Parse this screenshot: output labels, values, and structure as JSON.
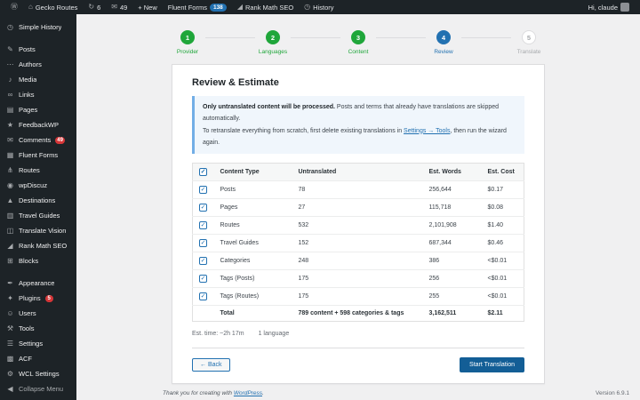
{
  "admin_bar": {
    "wp_logo_glyph": "Ⓦ",
    "home_glyph": "⌂",
    "site_name": "Gecko Routes",
    "updates_glyph": "↻",
    "updates_count": "6",
    "comments_glyph": "✉",
    "comments_count": "49",
    "new_label": "+ New",
    "fluent_forms_label": "Fluent Forms",
    "fluent_forms_badge": "138",
    "rank_math_glyph": "◢",
    "rank_math_label": "Rank Math SEO",
    "history_glyph": "◷",
    "history_label": "History",
    "greeting": "Hi, claude"
  },
  "sidebar": {
    "items": [
      {
        "label": "Simple History",
        "icon": "clock",
        "glyph": "◷"
      },
      {
        "separator": true
      },
      {
        "label": "Posts",
        "icon": "post",
        "glyph": "✎"
      },
      {
        "label": "Authors",
        "icon": "ellipsis",
        "glyph": "⋯"
      },
      {
        "label": "Media",
        "icon": "media",
        "glyph": "♪"
      },
      {
        "label": "Links",
        "icon": "link",
        "glyph": "∞"
      },
      {
        "label": "Pages",
        "icon": "pages",
        "glyph": "▤"
      },
      {
        "label": "FeedbackWP",
        "icon": "star",
        "glyph": "★"
      },
      {
        "label": "Comments",
        "icon": "comment-bubble",
        "glyph": "✉",
        "badge": "49"
      },
      {
        "label": "Fluent Forms",
        "icon": "form",
        "glyph": "▦"
      },
      {
        "label": "Routes",
        "icon": "sitemap",
        "glyph": "⋔"
      },
      {
        "label": "wpDiscuz",
        "icon": "discussion",
        "glyph": "◉"
      },
      {
        "label": "Destinations",
        "icon": "mountain",
        "glyph": "▲"
      },
      {
        "label": "Travel Guides",
        "icon": "book",
        "glyph": "▥"
      },
      {
        "label": "Translate Vision",
        "icon": "translate",
        "glyph": "◫"
      },
      {
        "label": "Rank Math SEO",
        "icon": "chart",
        "glyph": "◢"
      },
      {
        "label": "Blocks",
        "icon": "grid",
        "glyph": "⊞"
      },
      {
        "separator": true
      },
      {
        "label": "Appearance",
        "icon": "brush",
        "glyph": "✒"
      },
      {
        "label": "Plugins",
        "icon": "plugin",
        "glyph": "✦",
        "badge": "5"
      },
      {
        "label": "Users",
        "icon": "user",
        "glyph": "☺"
      },
      {
        "label": "Tools",
        "icon": "tools",
        "glyph": "⚒"
      },
      {
        "label": "Settings",
        "icon": "settings",
        "glyph": "☰"
      },
      {
        "label": "ACF",
        "icon": "acf",
        "glyph": "▩"
      },
      {
        "label": "WCL Settings",
        "icon": "gear",
        "glyph": "⚙"
      }
    ],
    "collapse": {
      "label": "Collapse Menu",
      "icon": "collapse-arrow",
      "glyph": "◀"
    }
  },
  "wizard": {
    "steps": [
      {
        "num": "1",
        "label": "Provider",
        "state": "done"
      },
      {
        "num": "2",
        "label": "Languages",
        "state": "done"
      },
      {
        "num": "3",
        "label": "Content",
        "state": "done"
      },
      {
        "num": "4",
        "label": "Review",
        "state": "active"
      },
      {
        "num": "5",
        "label": "Translate",
        "state": "todo"
      }
    ]
  },
  "card": {
    "title": "Review & Estimate",
    "notice": {
      "bold": "Only untranslated content will be processed.",
      "rest1": " Posts and terms that already have translations are skipped automatically.",
      "pre2": "To retranslate everything from scratch, first delete existing translations in ",
      "link": "Settings → Tools",
      "post2": ", then run the wizard again."
    },
    "table": {
      "check_glyph": "✓",
      "headers": [
        "Content Type",
        "Untranslated",
        "Est. Words",
        "Est. Cost"
      ],
      "rows": [
        {
          "type": "Posts",
          "untranslated": "78",
          "words": "256,644",
          "cost": "$0.17"
        },
        {
          "type": "Pages",
          "untranslated": "27",
          "words": "115,718",
          "cost": "$0.08"
        },
        {
          "type": "Routes",
          "untranslated": "532",
          "words": "2,101,908",
          "cost": "$1.40"
        },
        {
          "type": "Travel Guides",
          "untranslated": "152",
          "words": "687,344",
          "cost": "$0.46"
        },
        {
          "type": "Categories",
          "untranslated": "248",
          "words": "386",
          "cost": "<$0.01"
        },
        {
          "type": "Tags (Posts)",
          "untranslated": "175",
          "words": "256",
          "cost": "<$0.01"
        },
        {
          "type": "Tags (Routes)",
          "untranslated": "175",
          "words": "255",
          "cost": "<$0.01"
        }
      ],
      "total": {
        "label": "Total",
        "detail": "789 content + 598 categories & tags",
        "words": "3,162,511",
        "cost": "$2.11"
      }
    },
    "meta": {
      "est_time": "Est. time: ~2h 17m",
      "languages": "1 language"
    },
    "back_label": "← Back",
    "start_label": "Start Translation"
  },
  "page_footer": {
    "thanks_pre": "Thank you for creating with ",
    "wordpress_link": "WordPress",
    "thanks_post": ".",
    "version": "Version 6.9.1"
  }
}
